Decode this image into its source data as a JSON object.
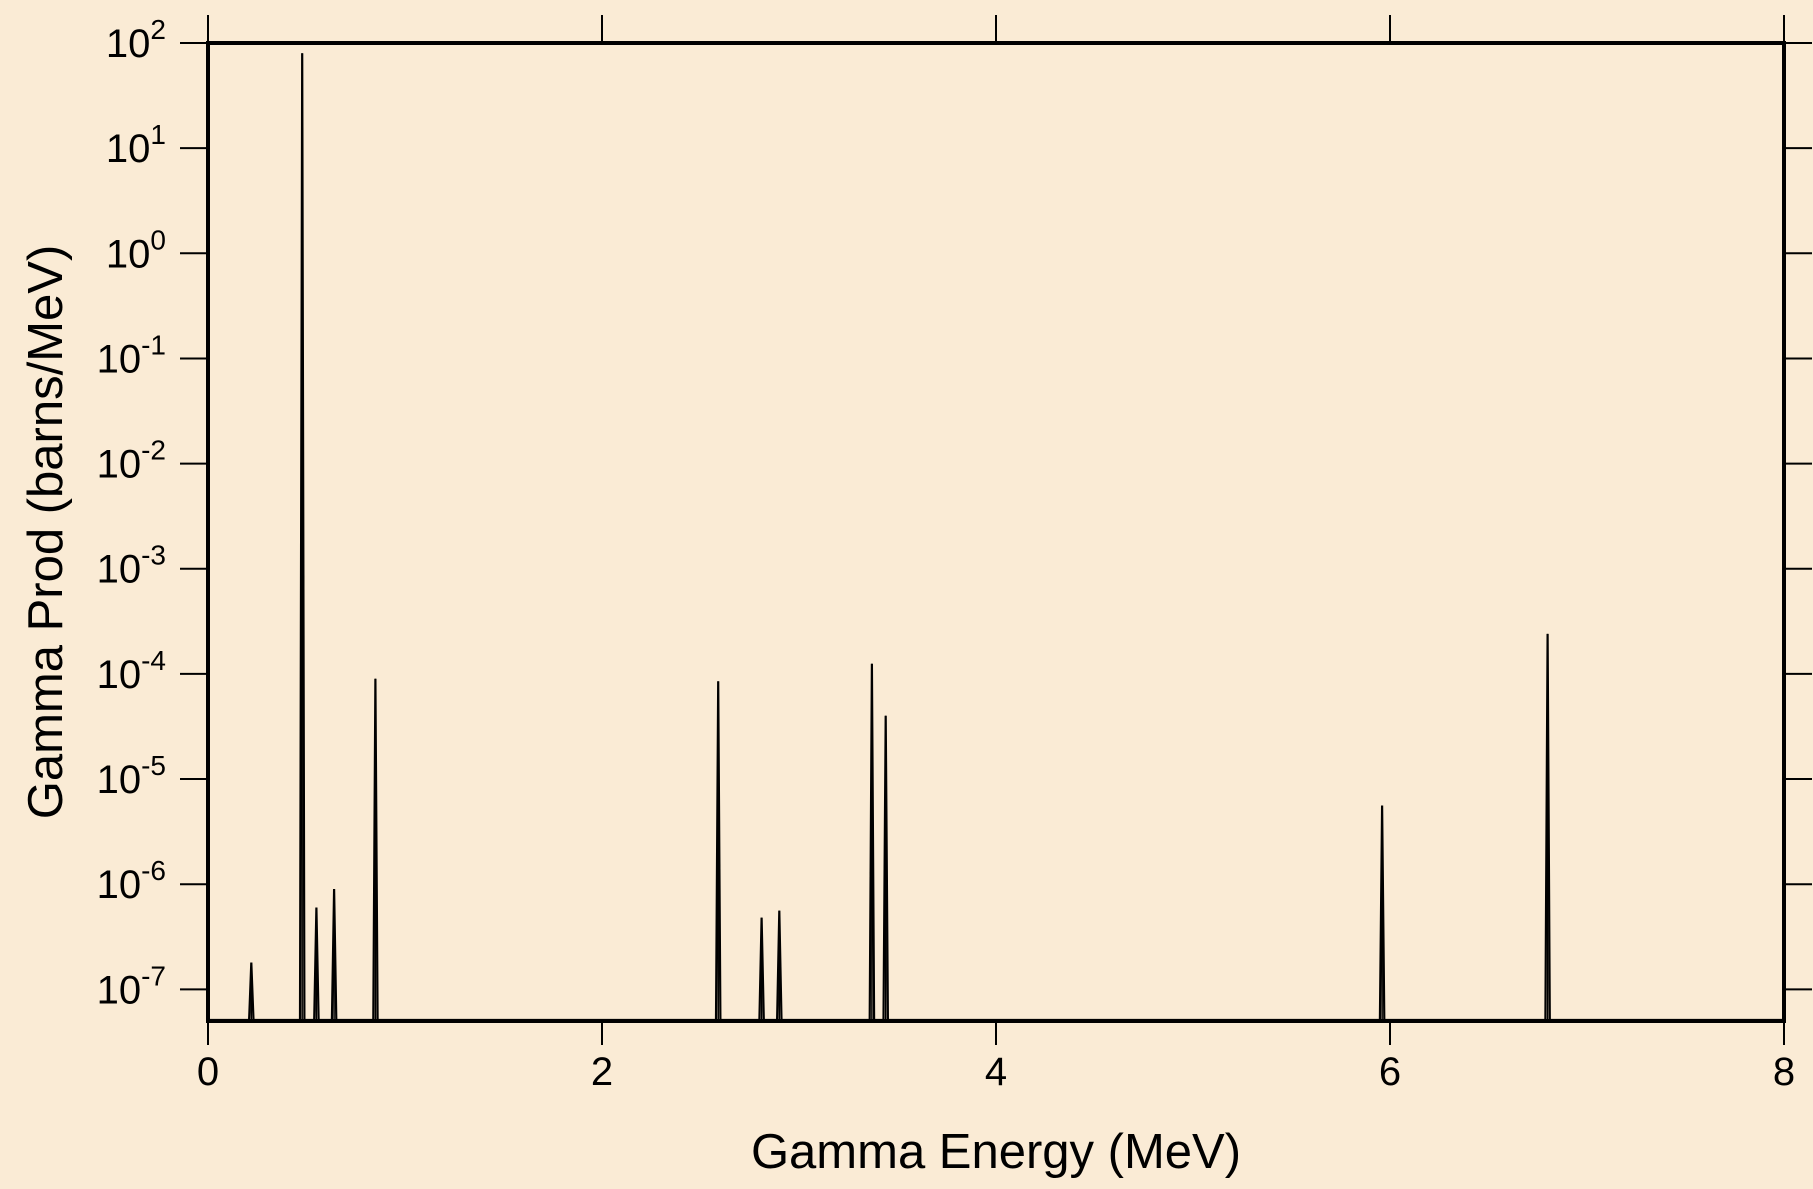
{
  "chart_data": {
    "type": "line",
    "xlabel": "Gamma Energy (MeV)",
    "ylabel": "Gamma Prod (barns/MeV)",
    "xlim": [
      0,
      8
    ],
    "ylim": [
      5e-08,
      100
    ],
    "yscale": "log",
    "grid": false,
    "x_ticks": [
      {
        "value": 0,
        "label": "0"
      },
      {
        "value": 2,
        "label": "2"
      },
      {
        "value": 4,
        "label": "4"
      },
      {
        "value": 6,
        "label": "6"
      },
      {
        "value": 8,
        "label": "8"
      }
    ],
    "y_ticks": [
      {
        "exp": 2,
        "base": "10",
        "sup": "2"
      },
      {
        "exp": 1,
        "base": "10",
        "sup": "1"
      },
      {
        "exp": 0,
        "base": "10",
        "sup": "0"
      },
      {
        "exp": -1,
        "base": "10",
        "sup": "-1"
      },
      {
        "exp": -2,
        "base": "10",
        "sup": "-2"
      },
      {
        "exp": -3,
        "base": "10",
        "sup": "-3"
      },
      {
        "exp": -4,
        "base": "10",
        "sup": "-4"
      },
      {
        "exp": -5,
        "base": "10",
        "sup": "-5"
      },
      {
        "exp": -6,
        "base": "10",
        "sup": "-6"
      },
      {
        "exp": -7,
        "base": "10",
        "sup": "-7"
      }
    ],
    "peaks": [
      {
        "x": 0.22,
        "y": 1.8e-07
      },
      {
        "x": 0.478,
        "y": 80
      },
      {
        "x": 0.55,
        "y": 6e-07
      },
      {
        "x": 0.64,
        "y": 9e-07
      },
      {
        "x": 0.85,
        "y": 9e-05
      },
      {
        "x": 2.59,
        "y": 8.5e-05
      },
      {
        "x": 2.81,
        "y": 4.8e-07
      },
      {
        "x": 2.9,
        "y": 5.6e-07
      },
      {
        "x": 3.37,
        "y": 0.000125
      },
      {
        "x": 3.44,
        "y": 4e-05
      },
      {
        "x": 5.96,
        "y": 5.6e-06
      },
      {
        "x": 6.8,
        "y": 0.00024
      }
    ],
    "colors": {
      "background": "#FAEBD5",
      "plot_area": "#FAEBD5",
      "line": "#000000",
      "frame": "#000000"
    }
  }
}
